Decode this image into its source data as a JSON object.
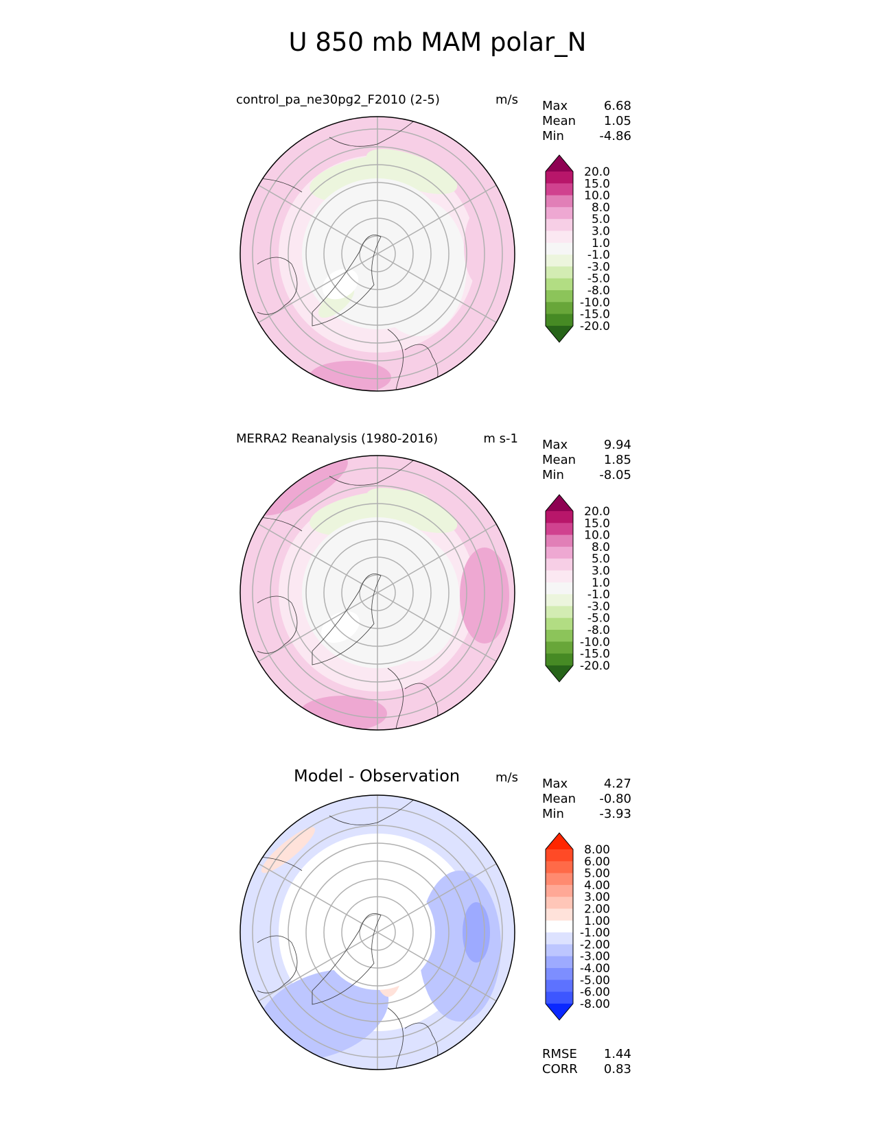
{
  "chart_data": {
    "type": "polar-contour",
    "title": "U 850 mb MAM polar_N",
    "projection": "north polar stereographic",
    "panels": [
      {
        "title": "control_pa_ne30pg2_F2010 (2-5)",
        "units": "m/s",
        "stats": [
          {
            "label": "Max",
            "value": "6.68"
          },
          {
            "label": "Mean",
            "value": "1.05"
          },
          {
            "label": "Min",
            "value": "-4.86"
          }
        ],
        "colorbar": {
          "levels": [
            "20.0",
            "15.0",
            "10.0",
            "8.0",
            "5.0",
            "3.0",
            "1.0",
            "-1.0",
            "-3.0",
            "-5.0",
            "-8.0",
            "-10.0",
            "-15.0",
            "-20.0"
          ],
          "colors": [
            "#8e0152",
            "#b8166a",
            "#d0428f",
            "#e17fb7",
            "#eea8d2",
            "#f7cfe6",
            "#fbe8f2",
            "#f6f6f6",
            "#ecf5dd",
            "#d3ecb3",
            "#b2dd83",
            "#8cc45a",
            "#68a639",
            "#468a24",
            "#276419"
          ]
        }
      },
      {
        "title": "MERRA2 Reanalysis (1980-2016)",
        "units": "m s-1",
        "stats": [
          {
            "label": "Max",
            "value": "9.94"
          },
          {
            "label": "Mean",
            "value": "1.85"
          },
          {
            "label": "Min",
            "value": "-8.05"
          }
        ],
        "colorbar": {
          "levels": [
            "20.0",
            "15.0",
            "10.0",
            "8.0",
            "5.0",
            "3.0",
            "1.0",
            "-1.0",
            "-3.0",
            "-5.0",
            "-8.0",
            "-10.0",
            "-15.0",
            "-20.0"
          ],
          "colors": [
            "#8e0152",
            "#b8166a",
            "#d0428f",
            "#e17fb7",
            "#eea8d2",
            "#f7cfe6",
            "#fbe8f2",
            "#f6f6f6",
            "#ecf5dd",
            "#d3ecb3",
            "#b2dd83",
            "#8cc45a",
            "#68a639",
            "#468a24",
            "#276419"
          ]
        }
      },
      {
        "title": "Model - Observation",
        "units": "m/s",
        "stats": [
          {
            "label": "Max",
            "value": "4.27"
          },
          {
            "label": "Mean",
            "value": "-0.80"
          },
          {
            "label": "Min",
            "value": "-3.93"
          }
        ],
        "extra_stats": [
          {
            "label": "RMSE",
            "value": "1.44"
          },
          {
            "label": "CORR",
            "value": "0.83"
          }
        ],
        "colorbar": {
          "levels": [
            "8.00",
            "6.00",
            "5.00",
            "4.00",
            "3.00",
            "2.00",
            "1.00",
            "-1.00",
            "-2.00",
            "-3.00",
            "-4.00",
            "-5.00",
            "-6.00",
            "-8.00"
          ],
          "colors": [
            "#ff2600",
            "#ff4a26",
            "#ff6a48",
            "#ff8a70",
            "#ffa896",
            "#ffc6b8",
            "#ffe2da",
            "#ffffff",
            "#dde2ff",
            "#bdc6ff",
            "#9daaff",
            "#7d8eff",
            "#5d72ff",
            "#3d56ff",
            "#0a28ff"
          ]
        }
      }
    ]
  }
}
